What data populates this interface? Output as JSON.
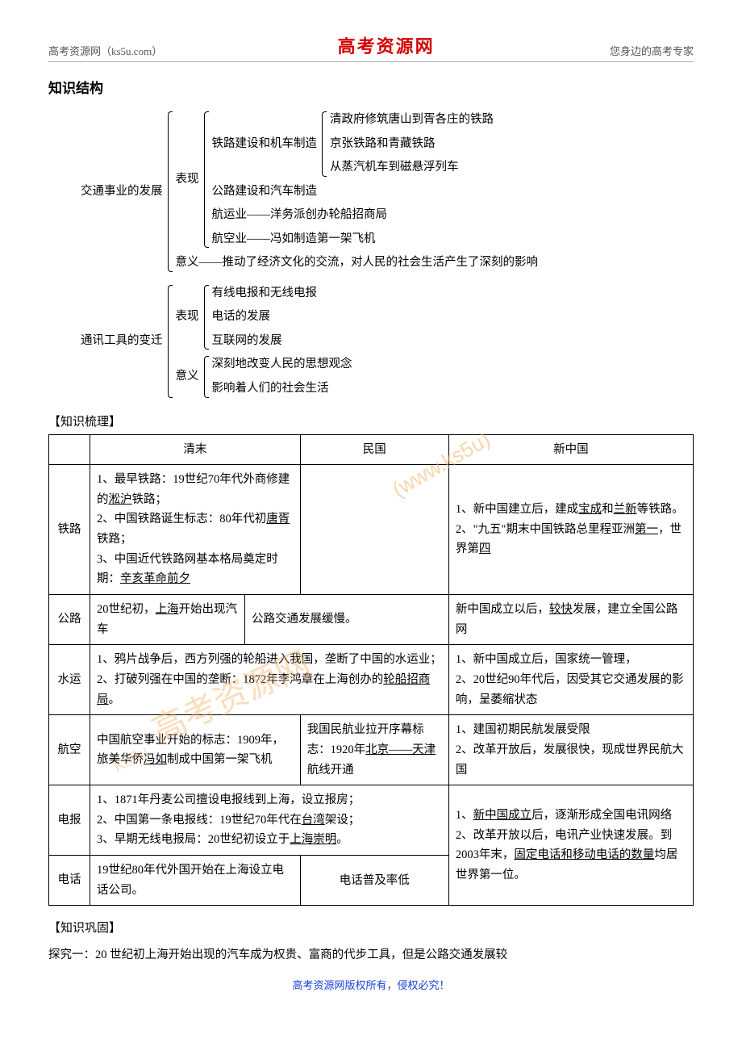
{
  "header": {
    "left": "高考资源网（ks5u.com）",
    "center": "高考资源网",
    "right": "您身边的高考专家"
  },
  "section_title": "知识结构",
  "tree": {
    "root1": {
      "label": "交通事业的发展",
      "children": [
        {
          "label": "表现",
          "children": [
            {
              "label": "铁路建设和机车制造",
              "children": [
                {
                  "text": "清政府修筑唐山到胥各庄的铁路"
                },
                {
                  "text": "京张铁路和青藏铁路"
                },
                {
                  "text": "从蒸汽机车到磁悬浮列车"
                }
              ]
            },
            {
              "text": "公路建设和汽车制造"
            },
            {
              "text": "航运业——洋务派创办轮船招商局"
            },
            {
              "text": "航空业——冯如制造第一架飞机"
            }
          ]
        },
        {
          "text": "意义——推动了经济文化的交流，对人民的社会生活产生了深刻的影响"
        }
      ]
    },
    "root2": {
      "label": "通讯工具的变迁",
      "children": [
        {
          "label": "表现",
          "children": [
            {
              "text": "有线电报和无线电报"
            },
            {
              "text": "电话的发展"
            },
            {
              "text": "互联网的发展"
            }
          ]
        },
        {
          "label": "意义",
          "children": [
            {
              "text": "深刻地改变人民的思想观念"
            },
            {
              "text": "影响着人们的社会生活"
            }
          ]
        }
      ]
    }
  },
  "bracket_heading_1": "【知识梳理】",
  "table": {
    "headers": {
      "c1": "",
      "c2": "清末",
      "c3": "民国",
      "c4": "新中国"
    },
    "rows": {
      "r1": {
        "label": "铁路",
        "qingmo_html": "1、最早铁路：19世纪70年代外商修建的<span class='u'>淞沪</span>铁路；<br>2、中国铁路诞生标志：80年代初<span class='u'>唐胥</span>铁路；<br>3、中国近代铁路网基本格局奠定时期：<span class='u'>辛亥革命前夕</span>",
        "minguo": "",
        "xin_html": "1、新中国建立后，建成<span class='u'>宝成</span>和<span class='u'>兰新</span>等铁路。<br>2、\"九五\"期末中国铁路总里程亚洲<span class='u'>第一</span>，世界第<span class='u'>四</span>"
      },
      "r2": {
        "label": "公路",
        "qingmo_left_html": "20世纪初，<span class='u'>上海</span>开始出现汽车",
        "qingmo_right": "公路交通发展缓慢。",
        "xin_html": "新中国成立以后，<span class='u'>较快</span>发展，建立全国公路网"
      },
      "r3": {
        "label": "水运",
        "qingmo_html": "1、鸦片战争后，西方列强的轮船进入我国，垄断了中国的水运业；<br>2、打破列强在中国的垄断：1872年李鸿章在上海创办的<span class='u'>轮船招商局</span>。",
        "xin": "1、新中国成立后，国家统一管理，\n2、20世纪90年代后，因受其它交通发展的影响，呈萎缩状态"
      },
      "r4": {
        "label": "航空",
        "qingmo_html": "中国航空事业开始的标志：1909年，旅美华侨<span class='u'>冯如</span>制成中国第一架飞机",
        "minguo_html": "我国民航业拉开序幕标志：1920年<span class='u'>北京——天津</span>航线开通",
        "xin": "1、建国初期民航发展受限\n2、改革开放后，发展很快，现成世界民航大国"
      },
      "r5": {
        "label": "电报",
        "qingmo_html": "1、1871年丹麦公司擅设电报线到上海，设立报房；<br>2、中国第一条电报线：19世纪70年代在<span class='u'>台湾</span>架设；<br>3、早期无线电报局：20世纪初设立于<span class='u'>上海崇明</span>。",
        "xin_html": "1、<span class='u'>新中国成立</span>后，逐渐形成全国电讯网络<br>2、改革开放以后，电讯产业快速发展。到2003年末，<span class='u'>固定电话和移动电话的数量</span>均居世界第一位。"
      },
      "r6": {
        "label": "电话",
        "qingmo": "19世纪80年代外国开始在上海设立电话公司。",
        "minguo": "电话普及率低"
      }
    }
  },
  "bracket_heading_2": "【知识巩固】",
  "question": "探究一：20 世纪初上海开始出现的汽车成为权贵、富商的代步工具，但是公路交通发展较",
  "footer": "高考资源网版权所有，侵权必究！",
  "watermarks": {
    "wm1": "(www.ks5u)",
    "wm2": "高考资源网",
    "wm3": "Ks5u"
  }
}
